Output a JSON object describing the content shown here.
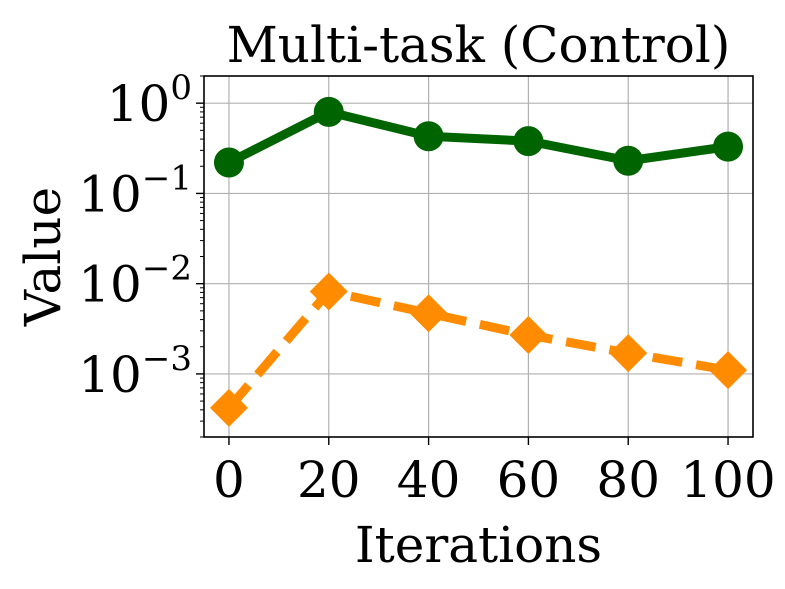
{
  "chart_data": {
    "type": "line",
    "title": "Multi-task (Control)",
    "xlabel": "Iterations",
    "ylabel": "Value",
    "yscale": "log",
    "xlim": [
      -5,
      105
    ],
    "ylim": [
      0.0002,
      2
    ],
    "grid": true,
    "x": [
      0,
      20,
      40,
      60,
      80,
      100
    ],
    "xticks": [
      {
        "value": 0,
        "label": "0"
      },
      {
        "value": 20,
        "label": "20"
      },
      {
        "value": 40,
        "label": "40"
      },
      {
        "value": 60,
        "label": "60"
      },
      {
        "value": 80,
        "label": "80"
      },
      {
        "value": 100,
        "label": "100"
      }
    ],
    "yticks": [
      {
        "value": 0.001,
        "base": "10",
        "exp": "−3"
      },
      {
        "value": 0.01,
        "base": "10",
        "exp": "−2"
      },
      {
        "value": 0.1,
        "base": "10",
        "exp": "−1"
      },
      {
        "value": 1,
        "base": "10",
        "exp": "0"
      }
    ],
    "series": [
      {
        "values": [
          0.22,
          0.8,
          0.43,
          0.38,
          0.23,
          0.33
        ],
        "color": "#006400",
        "line_style": "solid",
        "marker": "circle"
      },
      {
        "values": [
          0.00042,
          0.0082,
          0.0047,
          0.0027,
          0.0017,
          0.0011
        ],
        "color": "#ff8c00",
        "line_style": "dashed",
        "marker": "diamond"
      }
    ]
  }
}
